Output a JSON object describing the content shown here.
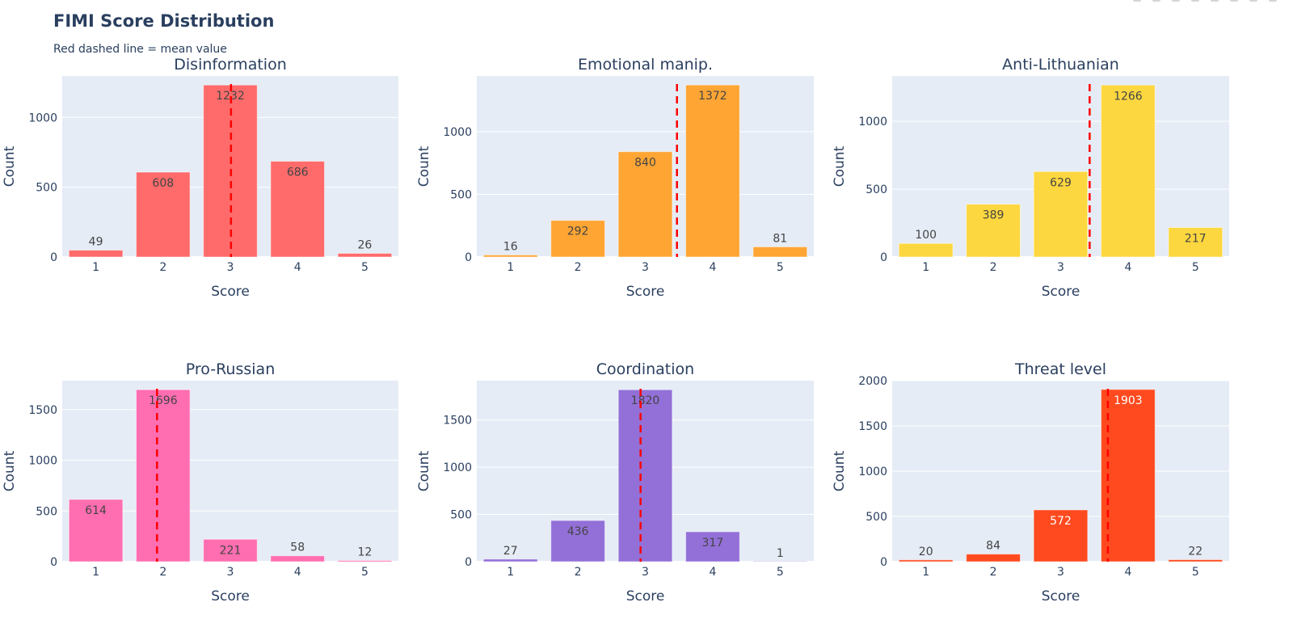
{
  "header": {
    "title": "FIMI Score Distribution",
    "subtitle": "Red dashed line = mean value"
  },
  "chart_data": [
    {
      "type": "bar",
      "title": "Disinformation",
      "categories": [
        "1",
        "2",
        "3",
        "4",
        "5"
      ],
      "values": [
        49,
        608,
        1232,
        686,
        26
      ],
      "mean": 3.01,
      "color": "#ff6b6b",
      "xlabel": "Score",
      "ylabel": "Count",
      "ylim": [
        0,
        1297
      ],
      "yticks": [
        0,
        500,
        1000
      ],
      "grid": true,
      "legend": "none"
    },
    {
      "type": "bar",
      "title": "Emotional manip.",
      "categories": [
        "1",
        "2",
        "3",
        "4",
        "5"
      ],
      "values": [
        16,
        292,
        840,
        1372,
        81
      ],
      "mean": 3.47,
      "color": "#ffa534",
      "xlabel": "Score",
      "ylabel": "Count",
      "ylim": [
        0,
        1444
      ],
      "yticks": [
        0,
        500,
        1000
      ],
      "grid": true,
      "legend": "none"
    },
    {
      "type": "bar",
      "title": "Anti-Lithuanian",
      "categories": [
        "1",
        "2",
        "3",
        "4",
        "5"
      ],
      "values": [
        100,
        389,
        629,
        1266,
        217
      ],
      "mean": 3.43,
      "color": "#fdd73f",
      "xlabel": "Score",
      "ylabel": "Count",
      "ylim": [
        0,
        1333
      ],
      "yticks": [
        0,
        500,
        1000
      ],
      "grid": true,
      "legend": "none"
    },
    {
      "type": "bar",
      "title": "Pro-Russian",
      "categories": [
        "1",
        "2",
        "3",
        "4",
        "5"
      ],
      "values": [
        614,
        1696,
        221,
        58,
        12
      ],
      "mean": 1.91,
      "color": "#ff6eb1",
      "xlabel": "Score",
      "ylabel": "Count",
      "ylim": [
        0,
        1785
      ],
      "yticks": [
        0,
        500,
        1000,
        1500
      ],
      "grid": true,
      "legend": "none"
    },
    {
      "type": "bar",
      "title": "Coordination",
      "categories": [
        "1",
        "2",
        "3",
        "4",
        "5"
      ],
      "values": [
        27,
        436,
        1820,
        317,
        1
      ],
      "mean": 2.93,
      "color": "#9370d8",
      "xlabel": "Score",
      "ylabel": "Count",
      "ylim": [
        0,
        1916
      ],
      "yticks": [
        0,
        500,
        1000,
        1500
      ],
      "grid": true,
      "legend": "none"
    },
    {
      "type": "bar",
      "title": "Threat level",
      "categories": [
        "1",
        "2",
        "3",
        "4",
        "5"
      ],
      "values": [
        20,
        84,
        572,
        1903,
        22
      ],
      "mean": 3.7,
      "color": "#ff4a1f",
      "label_color_inside": "#ffffff",
      "xlabel": "Score",
      "ylabel": "Count",
      "ylim": [
        0,
        2000
      ],
      "yticks": [
        0,
        500,
        1000,
        1500,
        2000
      ],
      "grid": true,
      "legend": "none"
    }
  ],
  "colors": {
    "plot_bg": "#e5ecf6",
    "mean_line": "#ff0000",
    "text": "#2a3f5f",
    "label_text": "#444444"
  },
  "modebar": {
    "icons": [
      "camera-icon",
      "zoom-icon",
      "pan-icon",
      "zoom-in-icon",
      "zoom-out-icon",
      "autoscale-icon",
      "reset-icon",
      "plotly-logo-icon"
    ]
  }
}
